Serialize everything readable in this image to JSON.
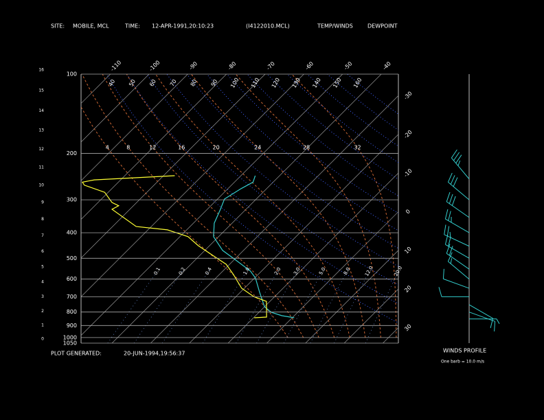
{
  "header": {
    "site_label": "SITE:",
    "site": "MOBILE, MCL",
    "time_label": "TIME:",
    "time": "12-APR-1991,20:10:23",
    "file": "(I4122010.MCL)"
  },
  "footer": {
    "generated_label": "PLOT GENERATED:",
    "generated": "20-JUN-1994,19:56:37"
  },
  "chart_data": {
    "type": "skewt",
    "ylog": true,
    "ylim": [
      100,
      1050
    ],
    "yticks": [
      100,
      200,
      300,
      400,
      500,
      600,
      700,
      800,
      900,
      1000,
      1050
    ],
    "xlim": [
      -48,
      34
    ],
    "xticks": [
      -110,
      -100,
      -90,
      -80,
      -70,
      -60,
      -50,
      -40,
      -30,
      -20,
      -10,
      0,
      10,
      20,
      30
    ],
    "height_ticks": [
      0,
      1,
      2,
      3,
      4,
      5,
      6,
      7,
      8,
      9,
      10,
      11,
      12,
      13,
      14,
      15,
      16
    ],
    "dry_adiabats": [
      40,
      50,
      60,
      70,
      80,
      90,
      100,
      110,
      120,
      130,
      140,
      150,
      160
    ],
    "moist_adiabats": [
      4,
      8,
      12,
      16,
      20,
      24,
      28,
      32
    ],
    "mixing_ratios": [
      0.1,
      0.2,
      0.4,
      {
        "value": 1,
        "label": "1.0"
      },
      {
        "value": 2,
        "label": "2.0"
      },
      {
        "value": 3,
        "label": "3.0"
      },
      {
        "value": 5,
        "label": "5.0"
      },
      {
        "value": 8,
        "label": "8.0"
      },
      {
        "value": 12,
        "label": "12.0"
      },
      {
        "value": 20,
        "label": "20.0"
      }
    ],
    "series": [
      {
        "name": "TEMP/WINDS",
        "color": "#33cccc",
        "pressure": [
          841,
          826,
          802,
          764,
          670,
          594,
          559,
          511,
          467,
          414,
          368,
          326,
          298,
          272,
          257,
          243
        ],
        "values": [
          0.5,
          -3.2,
          -6.8,
          -10,
          -15.2,
          -19.8,
          -22.9,
          -29.1,
          -35.4,
          -41.3,
          -44.6,
          -46.6,
          -48.2,
          -46.6,
          -45.2,
          -46.3
        ]
      },
      {
        "name": "DEWPOINT",
        "color": "#ffff33",
        "pressure": [
          841,
          836,
          729,
          699,
          650,
          576,
          527,
          496,
          448,
          414,
          390,
          379,
          326,
          316,
          307,
          281,
          264,
          257,
          252,
          243
        ],
        "values": [
          -9.8,
          -6.8,
          -10.9,
          -15.4,
          -20.7,
          -26.4,
          -30.9,
          -35.4,
          -42.9,
          -47.9,
          -55,
          -63.9,
          -74.6,
          -73.8,
          -76.4,
          -80.9,
          -88,
          -89.3,
          -86.8,
          -67.1
        ]
      }
    ],
    "winds": {
      "title": "WINDS PROFILE",
      "note": "One barb = 10.0 m/s",
      "barb_speed": 10,
      "pressure": [
        250,
        300,
        350,
        400,
        450,
        500,
        550,
        600,
        650,
        700,
        750,
        800,
        850
      ],
      "direction": [
        220,
        230,
        235,
        240,
        245,
        240,
        235,
        230,
        250,
        270,
        60,
        70,
        90
      ],
      "speed": [
        35,
        30,
        30,
        25,
        25,
        20,
        20,
        15,
        10,
        10,
        10,
        10,
        5
      ]
    }
  }
}
